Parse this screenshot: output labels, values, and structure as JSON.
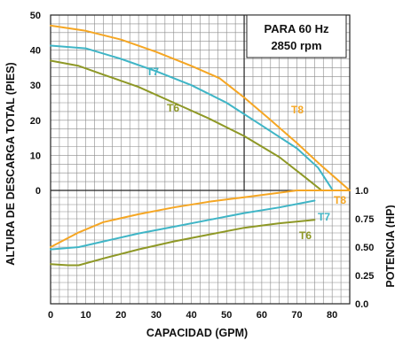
{
  "chart_data": {
    "type": "line",
    "info_box": {
      "line1": "PARA 60 Hz",
      "line2": "2850 rpm"
    },
    "xlabel": "CAPACIDAD (GPM)",
    "ylabel_left": "ALTURA DE DESCARGA TOTAL (PIES)",
    "ylabel_right": "POTENCIA (HP)",
    "x_ticks": [
      "0",
      "10",
      "20",
      "30",
      "40",
      "50",
      "60",
      "70",
      "80"
    ],
    "head_ticks": [
      "0",
      "10",
      "20",
      "30",
      "40",
      "50"
    ],
    "power_ticks": [
      "0.0",
      "0.25",
      "0.50",
      "0.75",
      "1.0"
    ],
    "xlim": [
      0,
      85
    ],
    "head_ylim": [
      0,
      50
    ],
    "power_ylim": [
      0,
      1.0
    ],
    "grid": true,
    "head_series": [
      {
        "name": "T8",
        "color": "#f5a623",
        "points": [
          [
            0,
            47
          ],
          [
            10,
            45.5
          ],
          [
            20,
            43
          ],
          [
            30,
            39.5
          ],
          [
            40,
            35.5
          ],
          [
            48,
            32
          ],
          [
            55,
            26.5
          ],
          [
            62,
            20.5
          ],
          [
            70,
            13.5
          ],
          [
            77,
            7
          ],
          [
            85,
            0
          ]
        ]
      },
      {
        "name": "T7",
        "color": "#3fb5c6",
        "points": [
          [
            0,
            41.3
          ],
          [
            10,
            40.5
          ],
          [
            20,
            37.5
          ],
          [
            30,
            34
          ],
          [
            40,
            30
          ],
          [
            50,
            25
          ],
          [
            60,
            18.5
          ],
          [
            70,
            12
          ],
          [
            76,
            6.5
          ],
          [
            80,
            0.3
          ]
        ]
      },
      {
        "name": "T6",
        "color": "#8e9826",
        "points": [
          [
            0,
            37
          ],
          [
            8,
            35.5
          ],
          [
            15,
            33
          ],
          [
            25,
            29.5
          ],
          [
            35,
            25
          ],
          [
            45,
            20.5
          ],
          [
            55,
            15.5
          ],
          [
            65,
            9.5
          ],
          [
            72,
            4
          ],
          [
            77,
            0
          ]
        ]
      }
    ],
    "power_series": [
      {
        "name": "T8",
        "color": "#f5a623",
        "points": [
          [
            0,
            0.5
          ],
          [
            8,
            0.63
          ],
          [
            15,
            0.72
          ],
          [
            25,
            0.79
          ],
          [
            35,
            0.85
          ],
          [
            45,
            0.9
          ],
          [
            55,
            0.94
          ],
          [
            65,
            0.98
          ],
          [
            70,
            1.0
          ],
          [
            85,
            1.0
          ]
        ]
      },
      {
        "name": "T7",
        "color": "#3fb5c6",
        "points": [
          [
            0,
            0.48
          ],
          [
            8,
            0.5
          ],
          [
            15,
            0.55
          ],
          [
            25,
            0.62
          ],
          [
            35,
            0.68
          ],
          [
            45,
            0.74
          ],
          [
            55,
            0.8
          ],
          [
            65,
            0.85
          ],
          [
            75,
            0.91
          ]
        ]
      },
      {
        "name": "T6",
        "color": "#8e9826",
        "points": [
          [
            0,
            0.35
          ],
          [
            5,
            0.34
          ],
          [
            8,
            0.34
          ],
          [
            15,
            0.4
          ],
          [
            25,
            0.48
          ],
          [
            35,
            0.55
          ],
          [
            45,
            0.61
          ],
          [
            55,
            0.67
          ],
          [
            65,
            0.71
          ],
          [
            75,
            0.74
          ]
        ]
      }
    ]
  }
}
